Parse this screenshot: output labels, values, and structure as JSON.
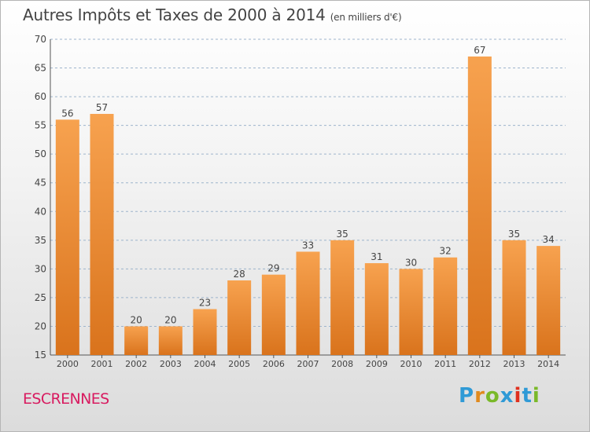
{
  "header": {
    "title": "Autres Impôts et Taxes de 2000 à 2014",
    "subtitle": "(en milliers d'€)"
  },
  "footer": {
    "commune": "ESCRENNES",
    "logo_text": "Proxiti",
    "logo_colors": [
      "#2f9ad6",
      "#e08a1e",
      "#7ab929",
      "#2f9ad6",
      "#e0301e",
      "#2f9ad6",
      "#7ab929"
    ]
  },
  "colors": {
    "bar_light": "#f7a24f",
    "bar_dark": "#d9731c",
    "grid": "#9db4cc",
    "axis_text": "#444444"
  },
  "chart_data": {
    "type": "bar",
    "categories": [
      "2000",
      "2001",
      "2002",
      "2003",
      "2004",
      "2005",
      "2006",
      "2007",
      "2008",
      "2009",
      "2010",
      "2011",
      "2012",
      "2013",
      "2014"
    ],
    "values": [
      56,
      57,
      20,
      20,
      23,
      28,
      29,
      33,
      35,
      31,
      30,
      32,
      67,
      35,
      34
    ],
    "ylim": [
      15,
      70
    ],
    "yticks": [
      15,
      20,
      25,
      30,
      35,
      40,
      45,
      50,
      55,
      60,
      65,
      70
    ],
    "grid": true,
    "legend": "none"
  }
}
